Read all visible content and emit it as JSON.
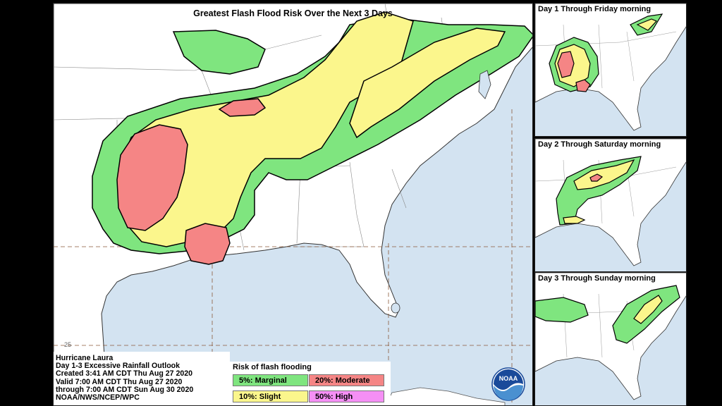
{
  "main": {
    "title": "Greatest Flash Flood Risk Over the Next 3 Days",
    "lat_label": "25"
  },
  "insets": [
    {
      "title": "Day 1 Through Friday morning"
    },
    {
      "title": "Day 2 Through Saturday morning"
    },
    {
      "title": "Day 3 Through Sunday morning"
    }
  ],
  "info": {
    "line1": "Hurricane Laura",
    "line2": "Day 1-3 Excessive Rainfall Outlook",
    "line3": "Created 3:41 AM CDT Thu Aug 27 2020",
    "line4": "Valid 7:00 AM CDT Thu Aug 27 2020",
    "line5": "through 7:00 AM CDT Sun Aug 30 2020",
    "line6": "NOAA/NWS/NCEP/WPC"
  },
  "legend": {
    "title": "Risk of flash flooding",
    "marginal": "5%: Marginal",
    "slight": "10%: Slight",
    "moderate": "20%: Moderate",
    "high": "50%: High"
  },
  "logo": {
    "text": "NOAA"
  },
  "colors": {
    "water": "#d3e3f1",
    "land": "#ffffff",
    "marginal": "#7fe57f",
    "slight": "#fbf68c",
    "moderate": "#f58585",
    "high": "#f58ff5"
  }
}
